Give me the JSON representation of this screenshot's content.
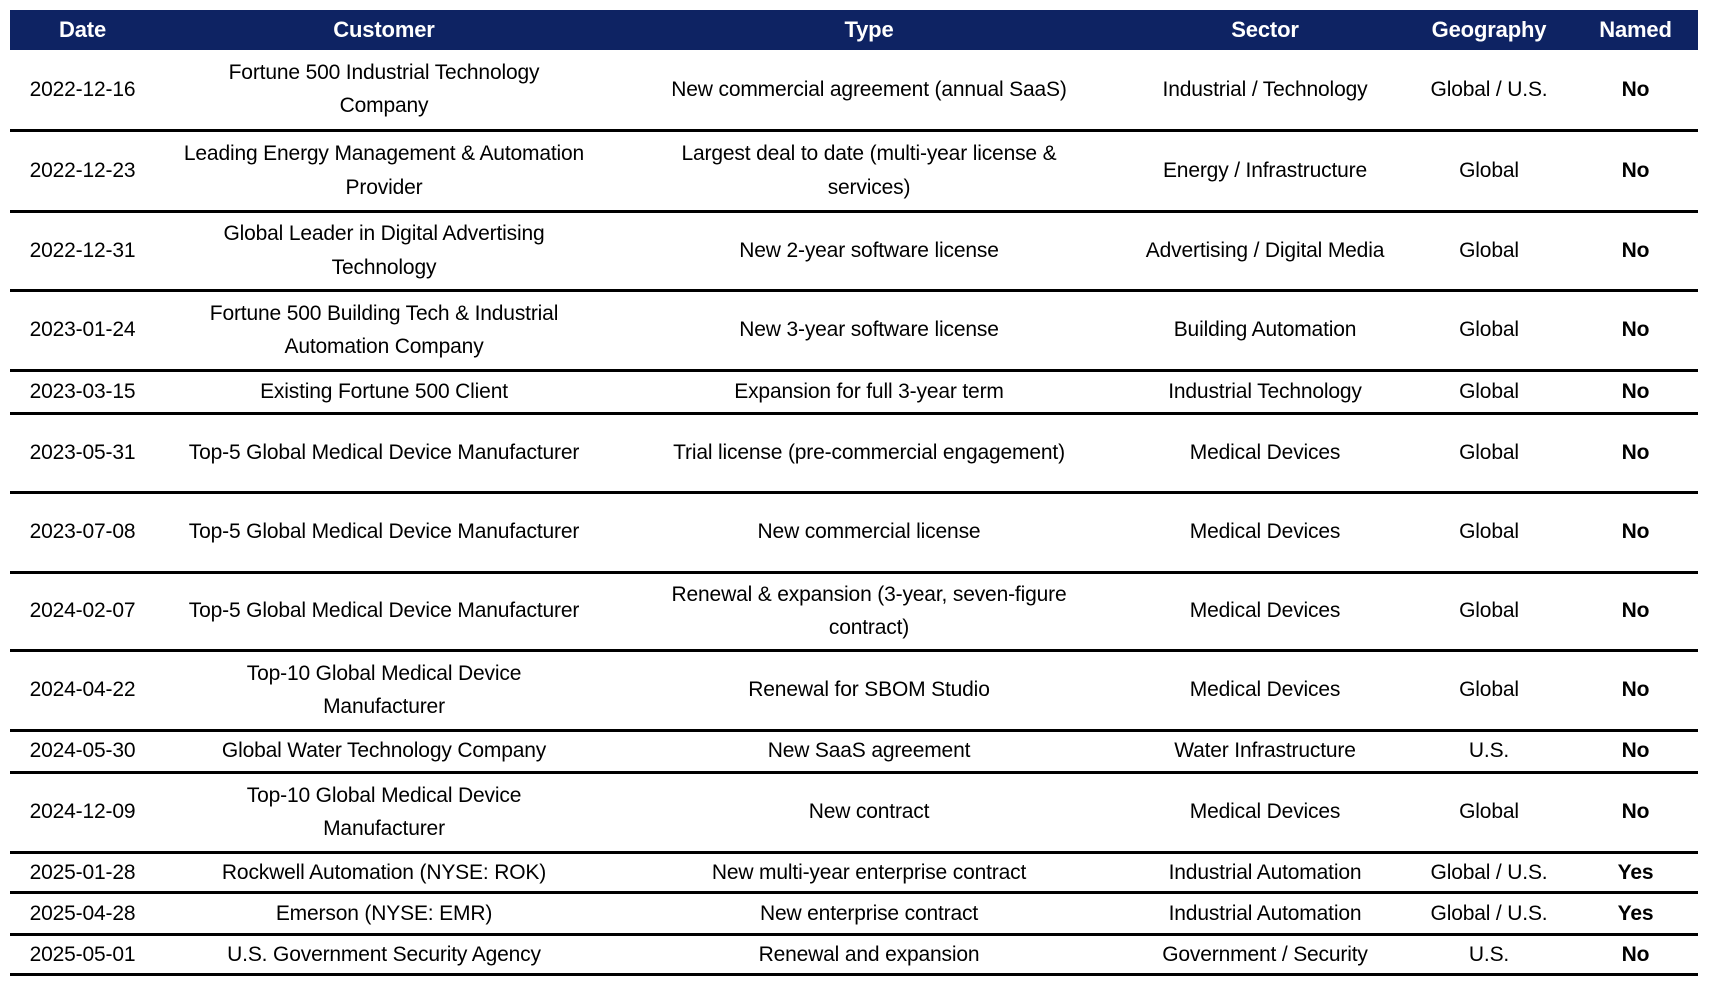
{
  "colors": {
    "header_bg": "#0E2363",
    "header_text": "#FFFFFF",
    "row_border": "#000000",
    "body_text": "#000000"
  },
  "table": {
    "columns": [
      {
        "key": "date",
        "label": "Date"
      },
      {
        "key": "customer",
        "label": "Customer"
      },
      {
        "key": "type",
        "label": "Type"
      },
      {
        "key": "sector",
        "label": "Sector"
      },
      {
        "key": "geography",
        "label": "Geography"
      },
      {
        "key": "named",
        "label": "Named"
      }
    ],
    "rows": [
      {
        "date": "2022-12-16",
        "customer": "Fortune 500 Industrial Technology\nCompany",
        "type": "New commercial agreement (annual SaaS)",
        "sector": "Industrial / Technology",
        "geography": "Global / U.S.",
        "named": "No"
      },
      {
        "date": "2022-12-23",
        "customer": "Leading Energy Management & Automation\nProvider",
        "type": "Largest deal to date (multi-year license &\nservices)",
        "sector": "Energy / Infrastructure",
        "geography": "Global",
        "named": "No"
      },
      {
        "date": "2022-12-31",
        "customer": "Global Leader in Digital Advertising\nTechnology",
        "type": "New 2-year software license",
        "sector": "Advertising / Digital Media",
        "geography": "Global",
        "named": "No"
      },
      {
        "date": "2023-01-24",
        "customer": "Fortune 500 Building Tech & Industrial\nAutomation Company",
        "type": "New 3-year software license",
        "sector": "Building Automation",
        "geography": "Global",
        "named": "No"
      },
      {
        "date": "2023-03-15",
        "customer": "Existing Fortune 500 Client",
        "type": "Expansion for full 3-year term",
        "sector": "Industrial Technology",
        "geography": "Global",
        "named": "No"
      },
      {
        "date": "2023-05-31",
        "customer": "Top-5 Global Medical Device Manufacturer",
        "type": "Trial license (pre-commercial engagement)",
        "sector": "Medical Devices",
        "geography": "Global",
        "named": "No"
      },
      {
        "date": "2023-07-08",
        "customer": "Top-5 Global Medical Device Manufacturer",
        "type": "New commercial license",
        "sector": "Medical Devices",
        "geography": "Global",
        "named": "No"
      },
      {
        "date": "2024-02-07",
        "customer": "Top-5 Global Medical Device Manufacturer",
        "type": "Renewal & expansion (3-year, seven-figure\ncontract)",
        "sector": "Medical Devices",
        "geography": "Global",
        "named": "No"
      },
      {
        "date": "2024-04-22",
        "customer": "Top-10 Global Medical Device\nManufacturer",
        "type": "Renewal for SBOM Studio",
        "sector": "Medical Devices",
        "geography": "Global",
        "named": "No"
      },
      {
        "date": "2024-05-30",
        "customer": "Global Water Technology Company",
        "type": "New SaaS agreement",
        "sector": "Water Infrastructure",
        "geography": "U.S.",
        "named": "No"
      },
      {
        "date": "2024-12-09",
        "customer": "Top-10 Global Medical Device\nManufacturer",
        "type": "New contract",
        "sector": "Medical Devices",
        "geography": "Global",
        "named": "No"
      },
      {
        "date": "2025-01-28",
        "customer": "Rockwell Automation (NYSE: ROK)",
        "type": "New multi-year enterprise contract",
        "sector": "Industrial Automation",
        "geography": "Global / U.S.",
        "named": "Yes"
      },
      {
        "date": "2025-04-28",
        "customer": "Emerson (NYSE: EMR)",
        "type": "New enterprise contract",
        "sector": "Industrial Automation",
        "geography": "Global / U.S.",
        "named": "Yes"
      },
      {
        "date": "2025-05-01",
        "customer": "U.S. Government Security Agency",
        "type": "Renewal and expansion",
        "sector": "Government / Security",
        "geography": "U.S.",
        "named": "No"
      }
    ]
  }
}
